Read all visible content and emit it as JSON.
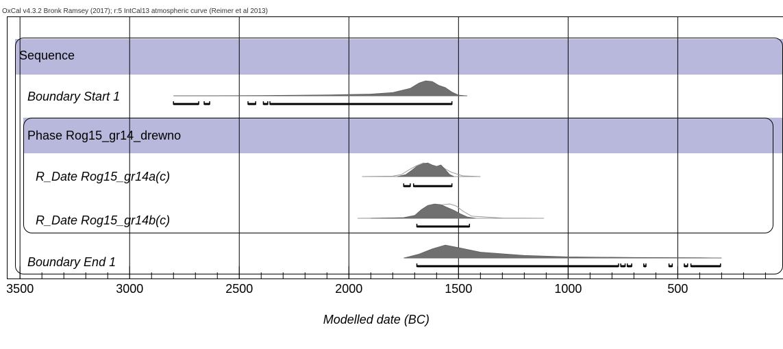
{
  "header_text": "OxCal v4.3.2 Bronk Ramsey (2017); r:5 IntCal13 atmospheric curve (Reimer et al 2013)",
  "colors": {
    "band": "#b8b8dc",
    "distribution": "#707070",
    "unmodelled": "#9a9a9a",
    "grid": "#000000"
  },
  "chart_data": {
    "type": "area",
    "xlabel": "Modelled date (BC)",
    "xlim": [
      3560,
      20
    ],
    "x_ticks": [
      3500,
      3000,
      2500,
      2000,
      1500,
      1000,
      500
    ],
    "minor_tick_step": 100,
    "grid": true,
    "sequence": {
      "label": "Sequence",
      "items": [
        {
          "kind": "boundary",
          "label": "Boundary Start 1",
          "italic": true,
          "range": [
            2800,
            1460
          ],
          "posterior": [
            [
              2800,
              0
            ],
            [
              2400,
              0.02
            ],
            [
              2100,
              0.06
            ],
            [
              1900,
              0.12
            ],
            [
              1800,
              0.22
            ],
            [
              1720,
              0.5
            ],
            [
              1680,
              0.85
            ],
            [
              1650,
              1.0
            ],
            [
              1620,
              0.95
            ],
            [
              1590,
              0.7
            ],
            [
              1560,
              0.55
            ],
            [
              1530,
              0.25
            ],
            [
              1500,
              0.05
            ],
            [
              1460,
              0
            ]
          ],
          "hpd_ranges": [
            [
              2800,
              2685
            ],
            [
              2660,
              2635
            ],
            [
              2460,
              2425
            ],
            [
              2390,
              2370
            ],
            [
              2360,
              1530
            ]
          ]
        },
        {
          "kind": "phase",
          "label": "Phase Rog15_gr14_drewno",
          "items": [
            {
              "kind": "r_date",
              "label": "R_Date Rog15_gr14a(c)",
              "italic": true,
              "range": [
                1940,
                1400
              ],
              "unmodelled": [
                [
                  1940,
                  0
                ],
                [
                  1800,
                  0.03
                ],
                [
                  1760,
                  0.15
                ],
                [
                  1720,
                  0.55
                ],
                [
                  1690,
                  0.8
                ],
                [
                  1660,
                  1.0
                ],
                [
                  1630,
                  0.85
                ],
                [
                  1600,
                  0.7
                ],
                [
                  1580,
                  0.8
                ],
                [
                  1560,
                  0.55
                ],
                [
                  1530,
                  0.3
                ],
                [
                  1480,
                  0.05
                ],
                [
                  1400,
                  0
                ]
              ],
              "posterior": [
                [
                  1780,
                  0
                ],
                [
                  1740,
                  0.15
                ],
                [
                  1710,
                  0.5
                ],
                [
                  1690,
                  0.75
                ],
                [
                  1660,
                  0.95
                ],
                [
                  1640,
                  1.0
                ],
                [
                  1620,
                  0.85
                ],
                [
                  1600,
                  0.75
                ],
                [
                  1580,
                  0.85
                ],
                [
                  1560,
                  0.5
                ],
                [
                  1540,
                  0.15
                ],
                [
                  1520,
                  0
                ]
              ],
              "hpd_ranges": [
                [
                  1750,
                  1720
                ],
                [
                  1705,
                  1530
                ]
              ]
            },
            {
              "kind": "r_date",
              "label": "R_Date Rog15_gr14b(c)",
              "italic": true,
              "range": [
                1960,
                1110
              ],
              "unmodelled": [
                [
                  1960,
                  0
                ],
                [
                  1750,
                  0.03
                ],
                [
                  1680,
                  0.25
                ],
                [
                  1640,
                  0.55
                ],
                [
                  1600,
                  0.85
                ],
                [
                  1570,
                  0.95
                ],
                [
                  1540,
                  1.0
                ],
                [
                  1510,
                  0.85
                ],
                [
                  1480,
                  0.5
                ],
                [
                  1440,
                  0.15
                ],
                [
                  1300,
                  0.02
                ],
                [
                  1110,
                  0
                ]
              ],
              "posterior": [
                [
                  1900,
                  0
                ],
                [
                  1750,
                  0.05
                ],
                [
                  1700,
                  0.2
                ],
                [
                  1670,
                  0.6
                ],
                [
                  1640,
                  0.9
                ],
                [
                  1610,
                  1.0
                ],
                [
                  1580,
                  0.95
                ],
                [
                  1550,
                  0.75
                ],
                [
                  1520,
                  0.55
                ],
                [
                  1490,
                  0.3
                ],
                [
                  1460,
                  0.1
                ],
                [
                  1420,
                  0
                ]
              ],
              "hpd_ranges": [
                [
                  1690,
                  1450
                ]
              ]
            }
          ]
        },
        {
          "kind": "boundary",
          "label": "Boundary End 1",
          "italic": true,
          "range": [
            1750,
            300
          ],
          "posterior": [
            [
              1750,
              0
            ],
            [
              1680,
              0.3
            ],
            [
              1620,
              0.7
            ],
            [
              1560,
              1.0
            ],
            [
              1500,
              0.8
            ],
            [
              1400,
              0.45
            ],
            [
              1200,
              0.2
            ],
            [
              1000,
              0.09
            ],
            [
              700,
              0.04
            ],
            [
              400,
              0.02
            ],
            [
              300,
              0
            ]
          ],
          "hpd_ranges": [
            [
              1690,
              770
            ],
            [
              760,
              740
            ],
            [
              730,
              710
            ],
            [
              655,
              645
            ],
            [
              540,
              525
            ],
            [
              470,
              455
            ],
            [
              440,
              305
            ]
          ]
        }
      ]
    }
  }
}
